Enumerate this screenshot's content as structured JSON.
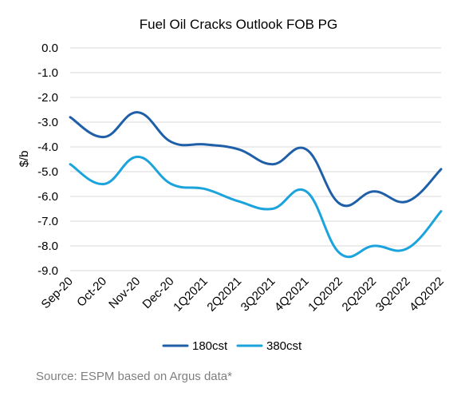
{
  "chart_data": {
    "type": "line",
    "title": "Fuel Oil Cracks Outlook FOB PG",
    "ylabel": "$/b",
    "xlabel": "",
    "categories": [
      "Sep-20",
      "Oct-20",
      "Nov-20",
      "Dec-20",
      "1Q2021",
      "2Q2021",
      "3Q2021",
      "4Q2021",
      "1Q2022",
      "2Q2022",
      "3Q2022",
      "4Q2022"
    ],
    "ylim": [
      -9.0,
      0.0
    ],
    "yticks": [
      0.0,
      -1.0,
      -2.0,
      -3.0,
      -4.0,
      -5.0,
      -6.0,
      -7.0,
      -8.0,
      -9.0
    ],
    "ytick_labels": [
      "0.0",
      "-1.0",
      "-2.0",
      "-3.0",
      "-4.0",
      "-5.0",
      "-6.0",
      "-7.0",
      "-8.0",
      "-9.0"
    ],
    "grid": "horizontal",
    "legend_position": "bottom",
    "smooth": true,
    "series": [
      {
        "name": "180cst",
        "color": "#1f5fa8",
        "values": [
          -2.8,
          -3.6,
          -2.6,
          -3.8,
          -3.9,
          -4.1,
          -4.7,
          -4.1,
          -6.3,
          -5.8,
          -6.2,
          -4.9
        ]
      },
      {
        "name": "380cst",
        "color": "#1aa3dc",
        "values": [
          -4.7,
          -5.5,
          -4.4,
          -5.5,
          -5.7,
          -6.2,
          -6.5,
          -5.8,
          -8.3,
          -8.0,
          -8.1,
          -6.6
        ]
      }
    ],
    "source": "Source: ESPM based on Argus data*"
  }
}
